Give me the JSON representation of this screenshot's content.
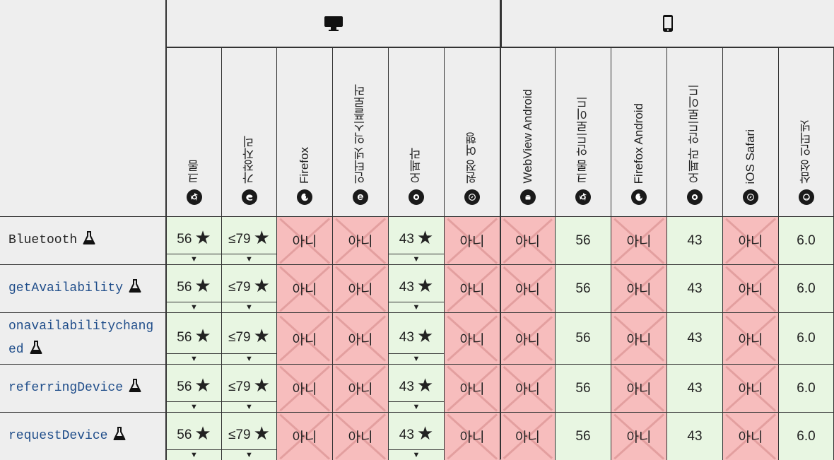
{
  "platforms": [
    {
      "icon": "desktop-icon"
    },
    {
      "icon": "mobile-icon"
    }
  ],
  "browsers": [
    {
      "label": "크롬",
      "icon": "chrome-icon"
    },
    {
      "label": "가장자리",
      "icon": "edge-icon"
    },
    {
      "label": "Firefox",
      "icon": "firefox-icon"
    },
    {
      "label": "인터넷 익스플로러",
      "icon": "ie-icon"
    },
    {
      "label": "오페라",
      "icon": "opera-icon"
    },
    {
      "label": "원정 여행",
      "icon": "safari-icon"
    },
    {
      "label": "WebView Android",
      "icon": "android-icon"
    },
    {
      "label": "크롬 안드로이드",
      "icon": "chrome-icon"
    },
    {
      "label": "Firefox Android",
      "icon": "firefox-icon"
    },
    {
      "label": "오페라 안드로이드",
      "icon": "opera-icon"
    },
    {
      "label": "iOS Safari",
      "icon": "safari-icon"
    },
    {
      "label": "삼성 인터넷",
      "icon": "samsung-internet-icon"
    }
  ],
  "features": [
    {
      "name": "Bluetooth",
      "link": false,
      "experimental_icon": "flask-icon"
    },
    {
      "name": "getAvailability",
      "link": true,
      "experimental_icon": "flask-icon"
    },
    {
      "name": "onavailabilitychanged",
      "link": true,
      "experimental_icon": "flask-icon"
    },
    {
      "name": "referringDevice",
      "link": true,
      "experimental_icon": "flask-icon"
    },
    {
      "name": "requestDevice",
      "link": true,
      "experimental_icon": "flask-icon"
    }
  ],
  "support_row": [
    {
      "value": "56",
      "supported": true,
      "flag": true
    },
    {
      "value": "≤79",
      "supported": true,
      "flag": true
    },
    {
      "value": "아니",
      "supported": false
    },
    {
      "value": "아니",
      "supported": false
    },
    {
      "value": "43",
      "supported": true,
      "flag": true
    },
    {
      "value": "아니",
      "supported": false
    },
    {
      "value": "아니",
      "supported": false
    },
    {
      "value": "56",
      "supported": true
    },
    {
      "value": "아니",
      "supported": false
    },
    {
      "value": "43",
      "supported": true
    },
    {
      "value": "아니",
      "supported": false
    },
    {
      "value": "6.0",
      "supported": true
    }
  ],
  "symbols": {
    "star": "★",
    "drop": "▼"
  },
  "colors": {
    "supported_bg": "#e8f6e2",
    "unsupported_bg": "#f7bdbd",
    "link": "#1f4d8a"
  }
}
